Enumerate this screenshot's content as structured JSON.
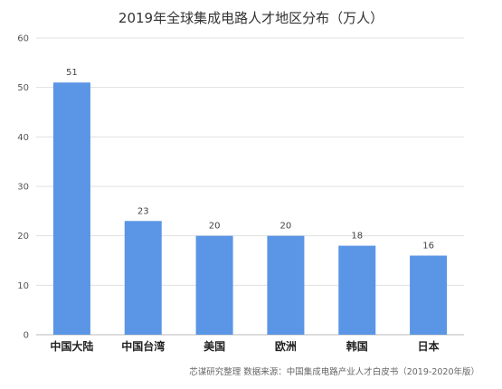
{
  "chart_data": {
    "type": "bar",
    "title": "2019年全球集成电路人才地区分布（万人）",
    "categories": [
      "中国大陆",
      "中国台湾",
      "美国",
      "欧洲",
      "韩国",
      "日本"
    ],
    "values": [
      51,
      23,
      20,
      20,
      18,
      16
    ],
    "data_labels": [
      "51",
      "23",
      "20",
      "20",
      "18",
      "16"
    ],
    "ylim": [
      0,
      60
    ],
    "yticks": [
      0,
      10,
      20,
      30,
      40,
      50,
      60
    ],
    "xlabel": "",
    "ylabel": "",
    "grid": true,
    "legend": "none",
    "bar_color": "#5b95e5",
    "grid_color": "#e0e0e0",
    "source": "芯谋研究整理  数据来源：中国集成电路产业人才白皮书（2019-2020年版）"
  }
}
